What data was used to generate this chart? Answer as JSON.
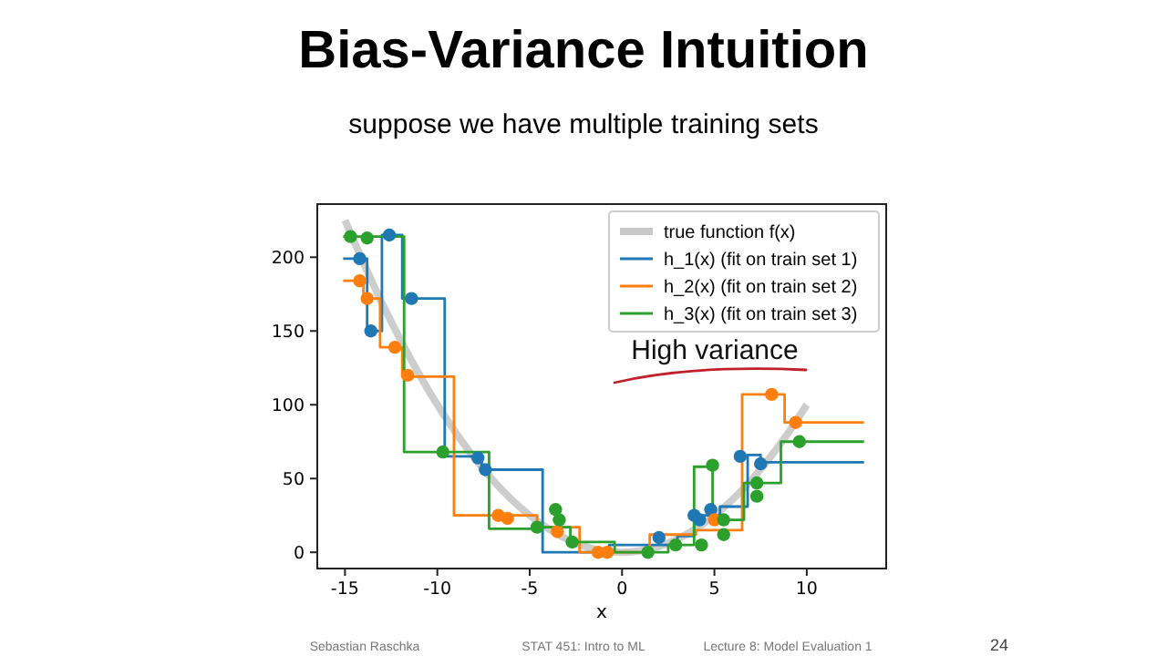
{
  "chart_data": {
    "type": "step",
    "title": "Bias-Variance Intuition",
    "subtitle": "suppose we have multiple training sets",
    "xlabel": "x",
    "annotations": [
      "High variance",
      "Sebastian Raschka",
      "STAT 451: Intro to ML",
      "Lecture 8: Model Evaluation 1",
      "24"
    ],
    "xlim": [
      -16.5,
      14.3
    ],
    "ylim": [
      -11,
      236
    ],
    "xticks": [
      -15,
      -10,
      -5,
      0,
      5,
      10
    ],
    "yticks": [
      0,
      50,
      100,
      150,
      200
    ],
    "grid": false,
    "legend": "top right",
    "series": [
      {
        "name": "true function f(x)",
        "type": "line",
        "color": "#c8c8c8",
        "x": [
          -15,
          -13,
          -11,
          -9,
          -7,
          -5,
          -3,
          -1,
          0,
          1,
          3,
          5,
          7,
          9,
          10
        ],
        "values": [
          225,
          169,
          121,
          81,
          49,
          25,
          9,
          1,
          0,
          1,
          9,
          25,
          49,
          81,
          100
        ]
      },
      {
        "name": "h_1(x) (fit on train set 1)",
        "color": "#1f77b4",
        "x": [
          -15.1,
          -13.8,
          -13.0,
          -11.9,
          -9.6,
          -7.6,
          -4.3,
          -0.7,
          3.0,
          3.9,
          5.3,
          6.8,
          7.5,
          13.1
        ],
        "values": [
          199,
          150,
          215,
          172,
          65,
          56,
          0,
          5,
          11,
          25,
          31,
          66,
          61,
          61
        ]
      },
      {
        "name": "h_2(x) (fit on train set 2)",
        "color": "#ff7f0e",
        "x": [
          -15.1,
          -14.0,
          -13.1,
          -11.9,
          -9.1,
          -4.6,
          -2.3,
          1.5,
          4.0,
          6.5,
          8.8,
          13.1
        ],
        "values": [
          184,
          172,
          139,
          119,
          25,
          17,
          0,
          12,
          15,
          107,
          88,
          88
        ]
      },
      {
        "name": "h_3(x) (fit on train set 3)",
        "color": "#2ca02c",
        "x": [
          -15.1,
          -11.8,
          -7.2,
          -4.5,
          -2.8,
          -0.4,
          2.5,
          3.9,
          4.9,
          6.6,
          8.6,
          13.1
        ],
        "values": [
          214,
          68,
          16,
          17,
          7,
          0,
          5,
          58,
          22,
          47,
          75,
          75
        ]
      },
      {
        "type": "scatter",
        "marker": "circle",
        "color": "#1f77b4",
        "x": [
          -14.2,
          -13.6,
          -12.6,
          -11.4,
          -7.8,
          -7.4,
          2.0,
          3.9,
          4.2,
          4.8,
          6.4,
          7.5
        ],
        "values": [
          199,
          150,
          215,
          172,
          64,
          56,
          10,
          25,
          22,
          29,
          65,
          60
        ]
      },
      {
        "type": "scatter",
        "marker": "circle",
        "color": "#ff7f0e",
        "x": [
          -14.2,
          -13.8,
          -12.3,
          -11.6,
          -6.7,
          -6.2,
          -3.5,
          -1.3,
          -0.8,
          5.0,
          8.1,
          9.4
        ],
        "values": [
          184,
          172,
          139,
          120,
          25,
          23,
          14,
          0,
          0,
          22,
          107,
          88
        ]
      },
      {
        "type": "scatter",
        "marker": "circle",
        "color": "#2ca02c",
        "x": [
          -14.7,
          -13.8,
          -9.7,
          -4.6,
          -3.6,
          -3.4,
          -2.7,
          1.4,
          2.9,
          4.3,
          4.9,
          5.5,
          5.5,
          7.3,
          7.3,
          9.6
        ],
        "values": [
          214,
          213,
          68,
          17,
          29,
          22,
          7,
          0,
          5,
          5,
          59,
          22,
          12,
          38,
          47,
          75
        ]
      }
    ]
  }
}
